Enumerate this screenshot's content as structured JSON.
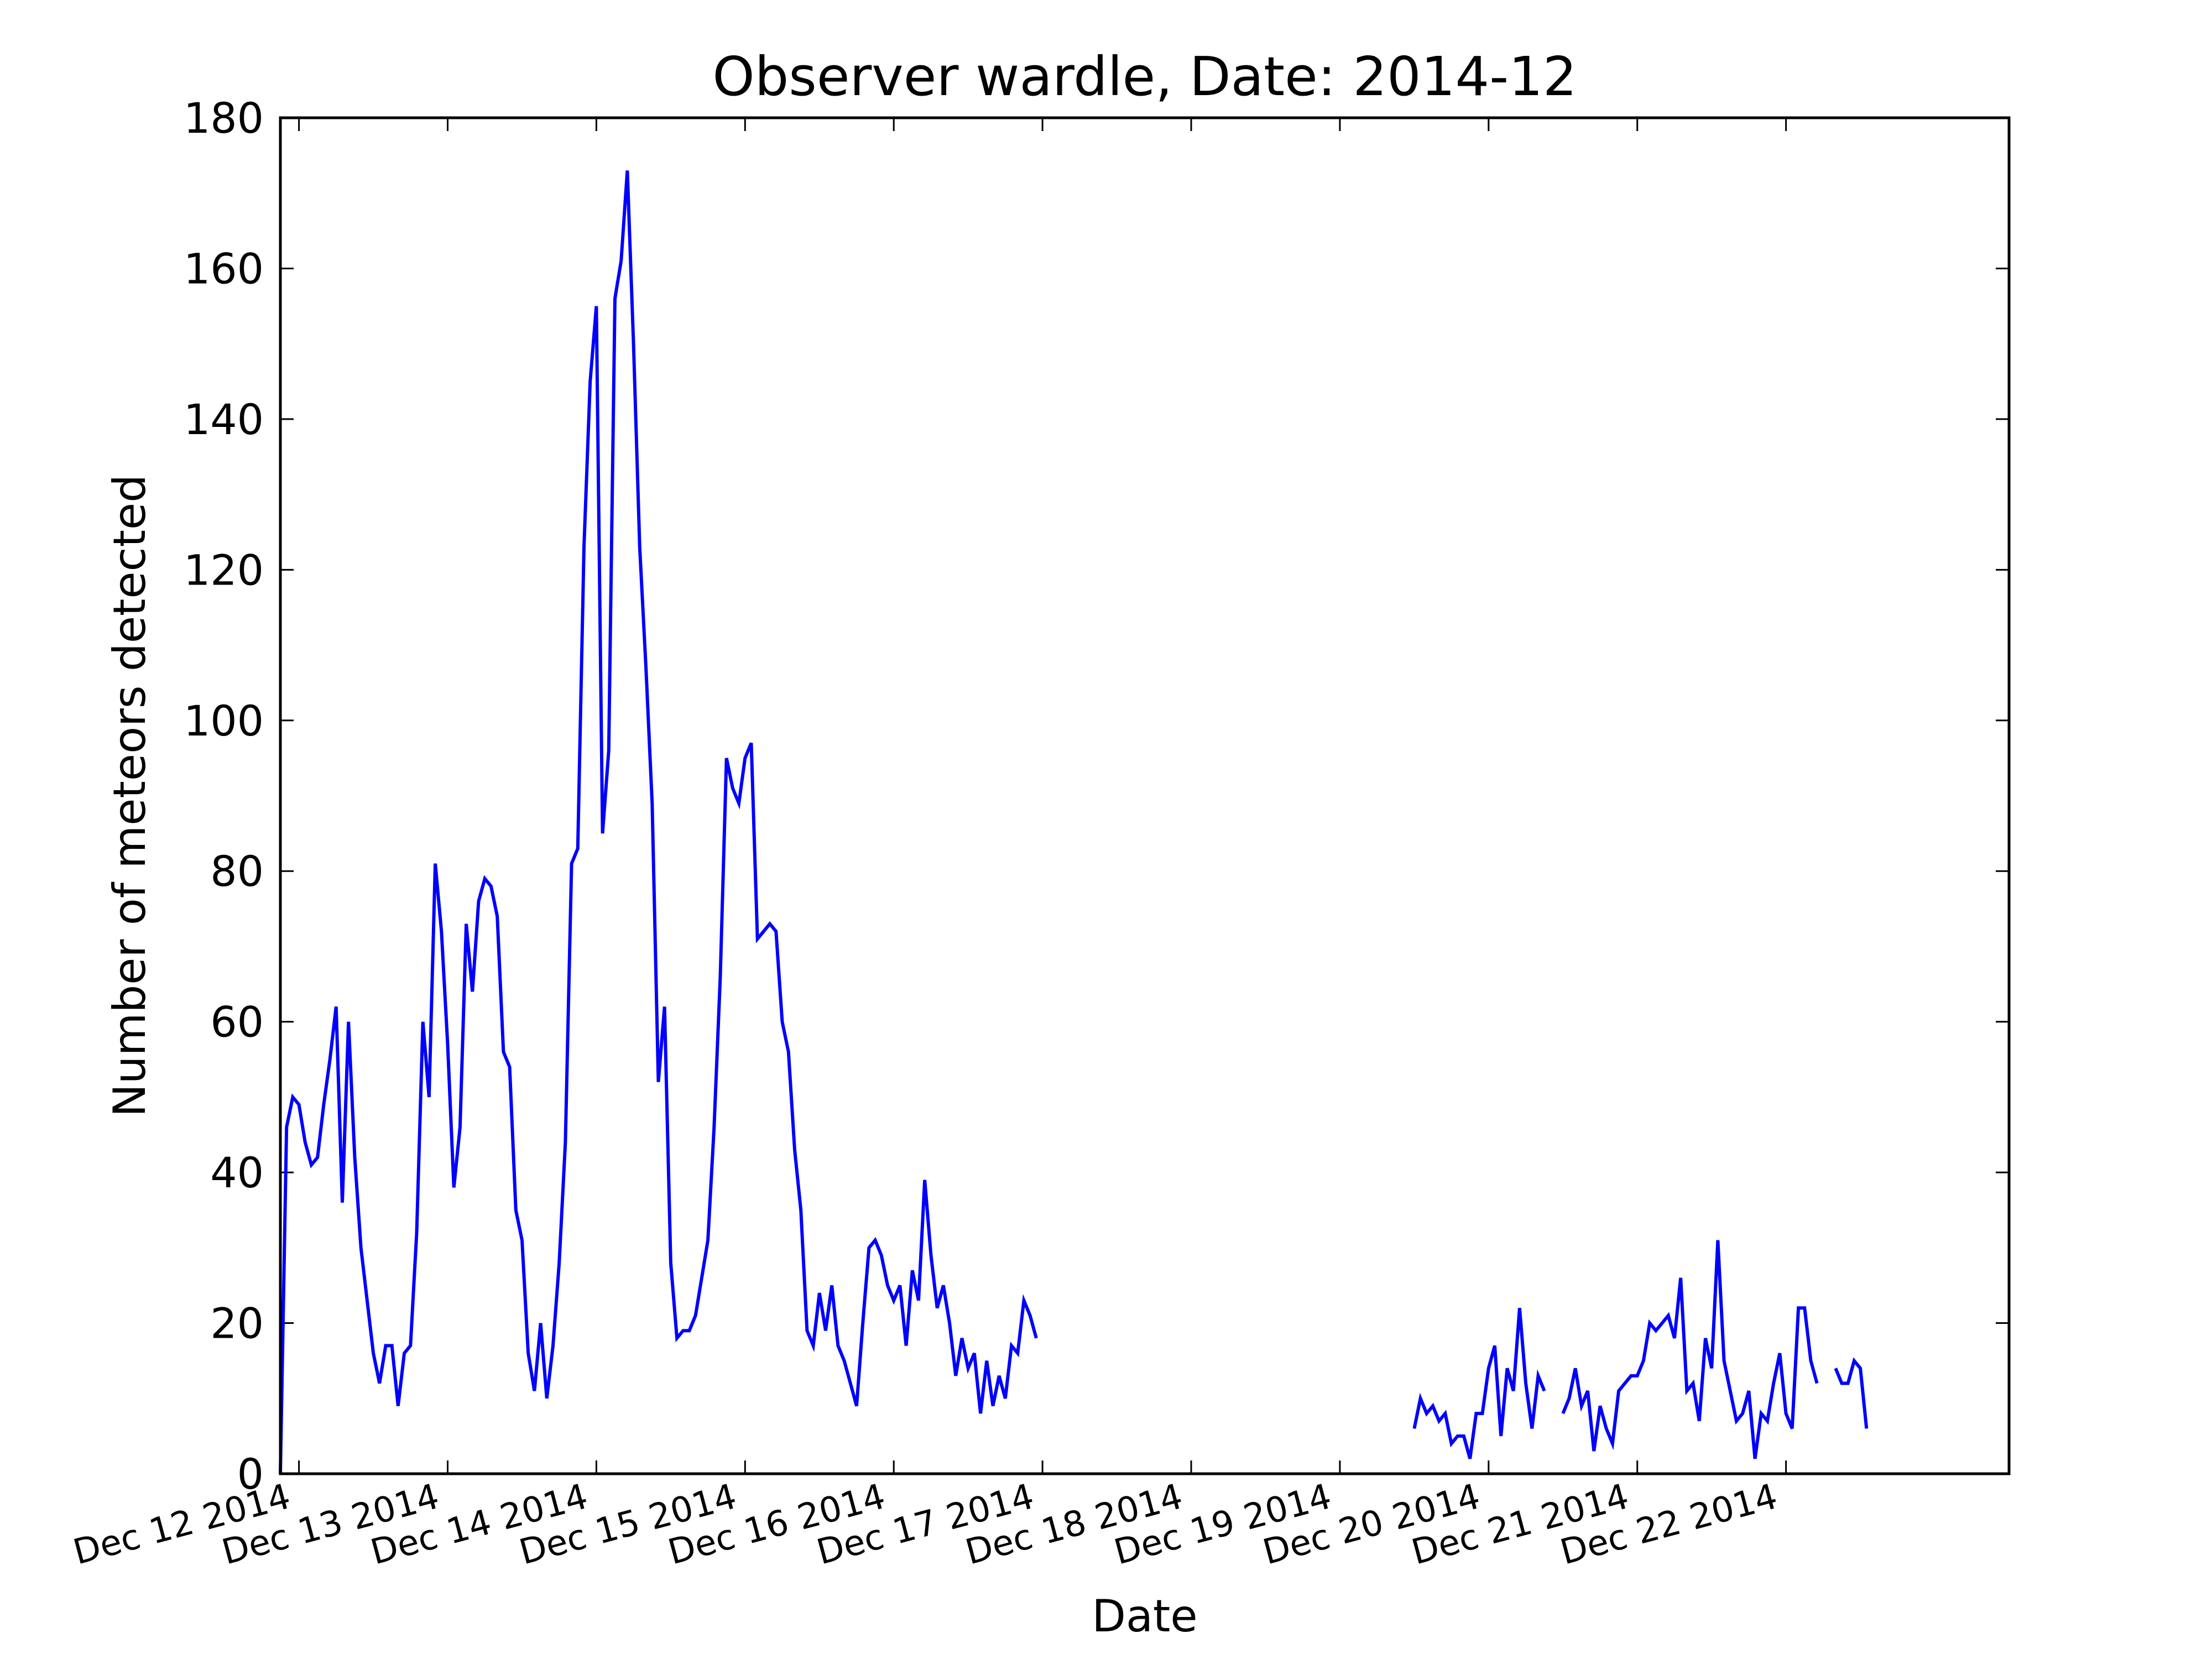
{
  "chart_data": {
    "type": "line",
    "title": "Observer wardle, Date: 2014-12",
    "xlabel": "Date",
    "ylabel": "Number of meteors detected",
    "ylim": [
      0,
      180
    ],
    "yticks": [
      0,
      20,
      40,
      60,
      80,
      100,
      120,
      140,
      160,
      180
    ],
    "xlim": [
      "2014-12-11 21:00",
      "2014-12-23 12:00"
    ],
    "xticks": [
      {
        "at": "2014-12-12 00:00",
        "label": "Dec 12 2014"
      },
      {
        "at": "2014-12-13 00:00",
        "label": "Dec 13 2014"
      },
      {
        "at": "2014-12-14 00:00",
        "label": "Dec 14 2014"
      },
      {
        "at": "2014-12-15 00:00",
        "label": "Dec 15 2014"
      },
      {
        "at": "2014-12-16 00:00",
        "label": "Dec 16 2014"
      },
      {
        "at": "2014-12-17 00:00",
        "label": "Dec 17 2014"
      },
      {
        "at": "2014-12-18 00:00",
        "label": "Dec 18 2014"
      },
      {
        "at": "2014-12-19 00:00",
        "label": "Dec 19 2014"
      },
      {
        "at": "2014-12-20 00:00",
        "label": "Dec 20 2014"
      },
      {
        "at": "2014-12-21 00:00",
        "label": "Dec 21 2014"
      },
      {
        "at": "2014-12-22 00:00",
        "label": "Dec 22 2014"
      }
    ],
    "grid": false,
    "color": "#0000ff",
    "series": [
      {
        "segments": [
          {
            "x": [
              "2014-12-11 21:00",
              "2014-12-11 22:00",
              "2014-12-11 23:00",
              "2014-12-12 00:00",
              "2014-12-12 01:00",
              "2014-12-12 02:00",
              "2014-12-12 03:00",
              "2014-12-12 04:00",
              "2014-12-12 05:00",
              "2014-12-12 06:00",
              "2014-12-12 07:00",
              "2014-12-12 08:00",
              "2014-12-12 09:00",
              "2014-12-12 10:00",
              "2014-12-12 11:00",
              "2014-12-12 12:00",
              "2014-12-12 13:00",
              "2014-12-12 14:00",
              "2014-12-12 15:00",
              "2014-12-12 16:00",
              "2014-12-12 17:00",
              "2014-12-12 18:00",
              "2014-12-12 19:00",
              "2014-12-12 20:00",
              "2014-12-12 21:00",
              "2014-12-12 22:00",
              "2014-12-12 23:00",
              "2014-12-13 00:00",
              "2014-12-13 01:00",
              "2014-12-13 02:00",
              "2014-12-13 03:00",
              "2014-12-13 04:00",
              "2014-12-13 05:00",
              "2014-12-13 06:00",
              "2014-12-13 07:00",
              "2014-12-13 08:00",
              "2014-12-13 09:00",
              "2014-12-13 10:00",
              "2014-12-13 11:00",
              "2014-12-13 12:00",
              "2014-12-13 13:00",
              "2014-12-13 14:00",
              "2014-12-13 15:00",
              "2014-12-13 16:00",
              "2014-12-13 17:00",
              "2014-12-13 18:00",
              "2014-12-13 19:00",
              "2014-12-13 20:00",
              "2014-12-13 21:00",
              "2014-12-13 22:00",
              "2014-12-13 23:00",
              "2014-12-14 00:00",
              "2014-12-14 01:00",
              "2014-12-14 02:00",
              "2014-12-14 03:00",
              "2014-12-14 04:00",
              "2014-12-14 05:00",
              "2014-12-14 06:00",
              "2014-12-14 07:00",
              "2014-12-14 08:00",
              "2014-12-14 09:00",
              "2014-12-14 10:00",
              "2014-12-14 11:00",
              "2014-12-14 12:00",
              "2014-12-14 13:00",
              "2014-12-14 14:00",
              "2014-12-14 15:00",
              "2014-12-14 16:00",
              "2014-12-14 17:00",
              "2014-12-14 18:00",
              "2014-12-14 19:00",
              "2014-12-14 20:00",
              "2014-12-14 21:00",
              "2014-12-14 22:00",
              "2014-12-14 23:00",
              "2014-12-15 00:00",
              "2014-12-15 01:00",
              "2014-12-15 02:00",
              "2014-12-15 03:00",
              "2014-12-15 04:00",
              "2014-12-15 05:00",
              "2014-12-15 06:00",
              "2014-12-15 07:00",
              "2014-12-15 08:00",
              "2014-12-15 09:00",
              "2014-12-15 10:00",
              "2014-12-15 11:00",
              "2014-12-15 12:00",
              "2014-12-15 13:00",
              "2014-12-15 14:00",
              "2014-12-15 15:00",
              "2014-12-15 16:00",
              "2014-12-15 17:00",
              "2014-12-15 18:00",
              "2014-12-15 19:00",
              "2014-12-15 20:00",
              "2014-12-15 21:00",
              "2014-12-15 22:00",
              "2014-12-15 23:00",
              "2014-12-16 00:00",
              "2014-12-16 01:00",
              "2014-12-16 02:00",
              "2014-12-16 03:00",
              "2014-12-16 04:00",
              "2014-12-16 05:00",
              "2014-12-16 06:00",
              "2014-12-16 07:00",
              "2014-12-16 08:00",
              "2014-12-16 09:00",
              "2014-12-16 10:00",
              "2014-12-16 11:00",
              "2014-12-16 12:00",
              "2014-12-16 13:00",
              "2014-12-16 14:00",
              "2014-12-16 15:00",
              "2014-12-16 16:00",
              "2014-12-16 17:00",
              "2014-12-16 18:00",
              "2014-12-16 19:00",
              "2014-12-16 20:00",
              "2014-12-16 21:00",
              "2014-12-16 22:00",
              "2014-12-16 23:00"
            ],
            "y": [
              0,
              46,
              50,
              49,
              44,
              41,
              42,
              49,
              55,
              62,
              36,
              60,
              42,
              30,
              23,
              16,
              12,
              17,
              17,
              9,
              16,
              17,
              32,
              60,
              50,
              81,
              72,
              57,
              38,
              46,
              73,
              64,
              76,
              79,
              78,
              74,
              56,
              54,
              35,
              31,
              16,
              11,
              20,
              10,
              17,
              28,
              44,
              81,
              83,
              123,
              145,
              155,
              85,
              96,
              156,
              161,
              173,
              150,
              123,
              107,
              89,
              52,
              62,
              28,
              18,
              19,
              19,
              21,
              26,
              31,
              46,
              66,
              95,
              91,
              89,
              95,
              97,
              71,
              72,
              73,
              72,
              60,
              56,
              43,
              35,
              19,
              17,
              24,
              19,
              25,
              17,
              15,
              12,
              9,
              20,
              30,
              31,
              29,
              25,
              23,
              25,
              17,
              27,
              23,
              39,
              29,
              22,
              25,
              20,
              13,
              18,
              14,
              16,
              8,
              15,
              9,
              13,
              10,
              17,
              16,
              23,
              21,
              18
            ]
          },
          {
            "x": [
              "2014-12-19 12:00",
              "2014-12-19 13:00",
              "2014-12-19 14:00",
              "2014-12-19 15:00",
              "2014-12-19 16:00",
              "2014-12-19 17:00",
              "2014-12-19 18:00",
              "2014-12-19 19:00",
              "2014-12-19 20:00",
              "2014-12-19 21:00",
              "2014-12-19 22:00",
              "2014-12-19 23:00",
              "2014-12-20 00:00",
              "2014-12-20 01:00",
              "2014-12-20 02:00",
              "2014-12-20 03:00",
              "2014-12-20 04:00",
              "2014-12-20 05:00",
              "2014-12-20 06:00",
              "2014-12-20 07:00",
              "2014-12-20 08:00",
              "2014-12-20 09:00"
            ],
            "y": [
              6,
              10,
              8,
              9,
              7,
              8,
              4,
              5,
              5,
              2,
              8,
              8,
              14,
              17,
              5,
              14,
              11,
              22,
              12,
              6,
              13,
              11
            ]
          },
          {
            "x": [
              "2014-12-20 12:00",
              "2014-12-20 13:00",
              "2014-12-20 14:00",
              "2014-12-20 15:00",
              "2014-12-20 16:00",
              "2014-12-20 17:00",
              "2014-12-20 18:00",
              "2014-12-20 19:00",
              "2014-12-20 20:00",
              "2014-12-20 21:00",
              "2014-12-20 22:00",
              "2014-12-20 23:00",
              "2014-12-21 00:00",
              "2014-12-21 01:00",
              "2014-12-21 02:00",
              "2014-12-21 03:00",
              "2014-12-21 04:00",
              "2014-12-21 05:00",
              "2014-12-21 06:00",
              "2014-12-21 07:00",
              "2014-12-21 08:00",
              "2014-12-21 09:00",
              "2014-12-21 10:00",
              "2014-12-21 11:00",
              "2014-12-21 12:00",
              "2014-12-21 13:00",
              "2014-12-21 14:00",
              "2014-12-21 15:00",
              "2014-12-21 16:00",
              "2014-12-21 17:00",
              "2014-12-21 18:00",
              "2014-12-21 19:00",
              "2014-12-21 20:00",
              "2014-12-21 21:00",
              "2014-12-21 22:00",
              "2014-12-21 23:00",
              "2014-12-22 00:00",
              "2014-12-22 01:00",
              "2014-12-22 02:00",
              "2014-12-22 03:00",
              "2014-12-22 04:00",
              "2014-12-22 05:00"
            ],
            "y": [
              8,
              10,
              14,
              9,
              11,
              3,
              9,
              6,
              4,
              11,
              12,
              13,
              13,
              15,
              20,
              19,
              20,
              21,
              18,
              26,
              11,
              12,
              7,
              18,
              14,
              31,
              15,
              11,
              7,
              8,
              11,
              2,
              8,
              7,
              12,
              16,
              8,
              6,
              22,
              22,
              15,
              12
            ]
          },
          {
            "x": [
              "2014-12-22 08:00",
              "2014-12-22 09:00",
              "2014-12-22 10:00",
              "2014-12-22 11:00",
              "2014-12-22 12:00",
              "2014-12-22 13:00"
            ],
            "y": [
              14,
              12,
              12,
              15,
              14,
              6
            ]
          }
        ]
      }
    ]
  }
}
